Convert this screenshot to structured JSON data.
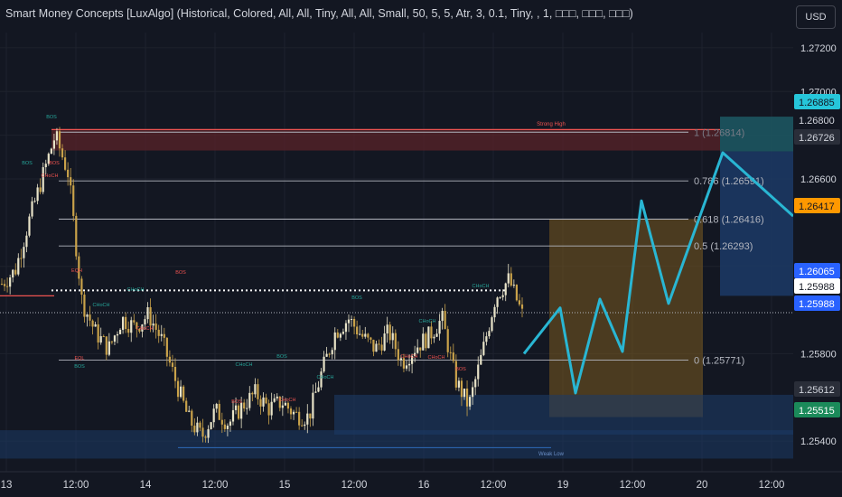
{
  "header": {
    "indicator_title": "Smart Money Concepts [LuxAlgo] (Historical, Colored, All, All, Tiny, All, All, Small, 50, 5, 5, Atr, 3, 0.1, Tiny, , 1, □□□, □□□, □□□)",
    "currency_button": "USD"
  },
  "colors": {
    "background": "#131722",
    "candle_up": "#e8e3c8",
    "candle_down": "#c9a24a",
    "projection": "#29b6d3",
    "bullish_zone": "#1c3a66",
    "bearish_zone": "#5a2328",
    "target_zone": "#7a5a1f",
    "fib_line": "#b2b5be",
    "bos_bullish": "#26a69a",
    "structure_bearish": "#ef5350",
    "highlight_blue_label": "#2962ff",
    "highlight_cyan_label": "#26c6da",
    "highlight_orange_label": "#ff9800",
    "highlight_green_label": "#1b8a5a"
  },
  "chart_data": {
    "type": "candlestick",
    "title": "",
    "y_axis": {
      "ticks": [
        "1.27200",
        "1.27000",
        "1.26800",
        "1.26600",
        "1.26200",
        "1.25800",
        "1.25400"
      ],
      "ylim": [
        1.2526,
        1.2727
      ]
    },
    "x_axis": {
      "ticks": [
        "13",
        "12:00",
        "14",
        "12:00",
        "15",
        "12:00",
        "16",
        "12:00",
        "19",
        "12:00",
        "20",
        "12:00"
      ]
    },
    "ohlc_anchor_closes": [
      1.2612,
      1.2618,
      1.264,
      1.266,
      1.268,
      1.2662,
      1.2604,
      1.259,
      1.2582,
      1.2596,
      1.2592,
      1.2598,
      1.2586,
      1.2568,
      1.255,
      1.2542,
      1.2554,
      1.2548,
      1.2556,
      1.2562,
      1.2555,
      1.2558,
      1.2552,
      1.2551,
      1.2572,
      1.259,
      1.2596,
      1.2588,
      1.2582,
      1.259,
      1.2576,
      1.2583,
      1.2588,
      1.2596,
      1.2568,
      1.2556,
      1.258,
      1.2606,
      1.2614,
      1.2598
    ],
    "price_labels": [
      {
        "text": "1.26885",
        "kind": "cyan",
        "value": 1.26885
      },
      {
        "text": "1.26800",
        "kind": "plain",
        "value": 1.268
      },
      {
        "text": "1.26726",
        "kind": "dark",
        "value": 1.26726
      },
      {
        "text": "1.26417",
        "kind": "orange",
        "value": 1.26417
      },
      {
        "text": "1.26065",
        "kind": "blue",
        "value": 1.26065
      },
      {
        "text": "1.25988",
        "kind": "white",
        "value": 1.25988
      },
      {
        "text": "1.25988",
        "kind": "blue",
        "value": 1.25988
      },
      {
        "text": "1.25612",
        "kind": "dark",
        "value": 1.25612
      },
      {
        "text": "1.25515",
        "kind": "green",
        "value": 1.25515
      }
    ],
    "fib_levels": [
      {
        "text": "1 (1.26814)",
        "value": 1.26814
      },
      {
        "text": "0.786 (1.26591)",
        "value": 1.26591
      },
      {
        "text": "0.618 (1.26416)",
        "value": 1.26416
      },
      {
        "text": "0.5 (1.26293)",
        "value": 1.26293
      },
      {
        "text": "0 (1.25771)",
        "value": 1.25771
      }
    ],
    "zone_labels": {
      "strong_high": "Strong High",
      "weak_low": "Weak Low"
    },
    "structure_labels": [
      {
        "text": "BOS",
        "kind": "bull"
      },
      {
        "text": "BOS",
        "kind": "bull"
      },
      {
        "text": "CHoCH",
        "kind": "bear"
      },
      {
        "text": "EQH",
        "kind": "bear"
      },
      {
        "text": "CHoCH",
        "kind": "bull"
      },
      {
        "text": "BOS",
        "kind": "bull"
      },
      {
        "text": "CHoCH",
        "kind": "bear"
      },
      {
        "text": "BOS",
        "kind": "bear"
      },
      {
        "text": "BOS",
        "kind": "bear"
      },
      {
        "text": "CHoCH",
        "kind": "bull"
      },
      {
        "text": "BOS",
        "kind": "bull"
      },
      {
        "text": "EQL",
        "kind": "bear"
      },
      {
        "text": "BOS",
        "kind": "bear"
      },
      {
        "text": "CHoCH",
        "kind": "bear"
      },
      {
        "text": "CHoCH",
        "kind": "bull"
      },
      {
        "text": "BOS",
        "kind": "bull"
      },
      {
        "text": "CHoCH",
        "kind": "bull"
      },
      {
        "text": "CHoCH",
        "kind": "bull"
      },
      {
        "text": "CHoCH",
        "kind": "bear"
      },
      {
        "text": "CHoCH",
        "kind": "bear"
      },
      {
        "text": "BOS",
        "kind": "bear"
      },
      {
        "text": "CHoCH",
        "kind": "bull"
      }
    ],
    "projection_path": [
      [
        1.258,
        "start"
      ],
      [
        1.2601,
        "peak"
      ],
      [
        1.2562,
        "trough"
      ],
      [
        1.2605,
        "peak"
      ],
      [
        1.2581,
        "trough"
      ],
      [
        1.265,
        "peak"
      ],
      [
        1.2603,
        "trough"
      ],
      [
        1.2672,
        "target"
      ],
      [
        1.2643,
        "end"
      ]
    ]
  }
}
